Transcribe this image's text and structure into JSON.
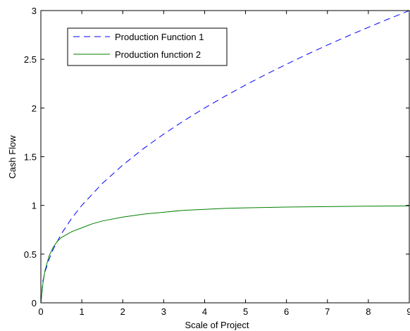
{
  "chart_data": {
    "type": "line",
    "xlabel": "Scale of Project",
    "ylabel": "Cash Flow",
    "xlim": [
      0,
      9
    ],
    "ylim": [
      0,
      3
    ],
    "xticks": [
      "0",
      "1",
      "2",
      "3",
      "4",
      "5",
      "6",
      "7",
      "8",
      "9"
    ],
    "yticks": [
      "0",
      "0.5",
      "1",
      "1.5",
      "2",
      "2.5",
      "3"
    ],
    "grid": false,
    "legend_position": "top-left",
    "series": [
      {
        "name": "Production Function 1",
        "color": "#0000ff",
        "style": "dashed",
        "x": [
          0,
          0.05,
          0.1,
          0.2,
          0.3,
          0.5,
          0.75,
          1,
          1.5,
          2,
          2.5,
          3,
          3.5,
          4,
          4.5,
          5,
          5.5,
          6,
          6.5,
          7,
          7.5,
          8,
          8.5,
          9
        ],
        "y": [
          0,
          0.224,
          0.316,
          0.447,
          0.548,
          0.707,
          0.866,
          1.0,
          1.225,
          1.414,
          1.581,
          1.732,
          1.871,
          2.0,
          2.121,
          2.236,
          2.345,
          2.449,
          2.55,
          2.646,
          2.739,
          2.828,
          2.915,
          3.0
        ]
      },
      {
        "name": "Production function 2",
        "color": "#008000",
        "style": "solid",
        "x": [
          0,
          0.05,
          0.1,
          0.2,
          0.3,
          0.4,
          0.5,
          0.75,
          1,
          1.25,
          1.5,
          2,
          2.5,
          3,
          3.5,
          4,
          4.5,
          5,
          6,
          7,
          8,
          9
        ],
        "y": [
          0,
          0.2,
          0.33,
          0.48,
          0.57,
          0.63,
          0.67,
          0.73,
          0.77,
          0.81,
          0.84,
          0.88,
          0.91,
          0.93,
          0.95,
          0.96,
          0.97,
          0.975,
          0.983,
          0.988,
          0.992,
          0.995
        ]
      }
    ]
  }
}
